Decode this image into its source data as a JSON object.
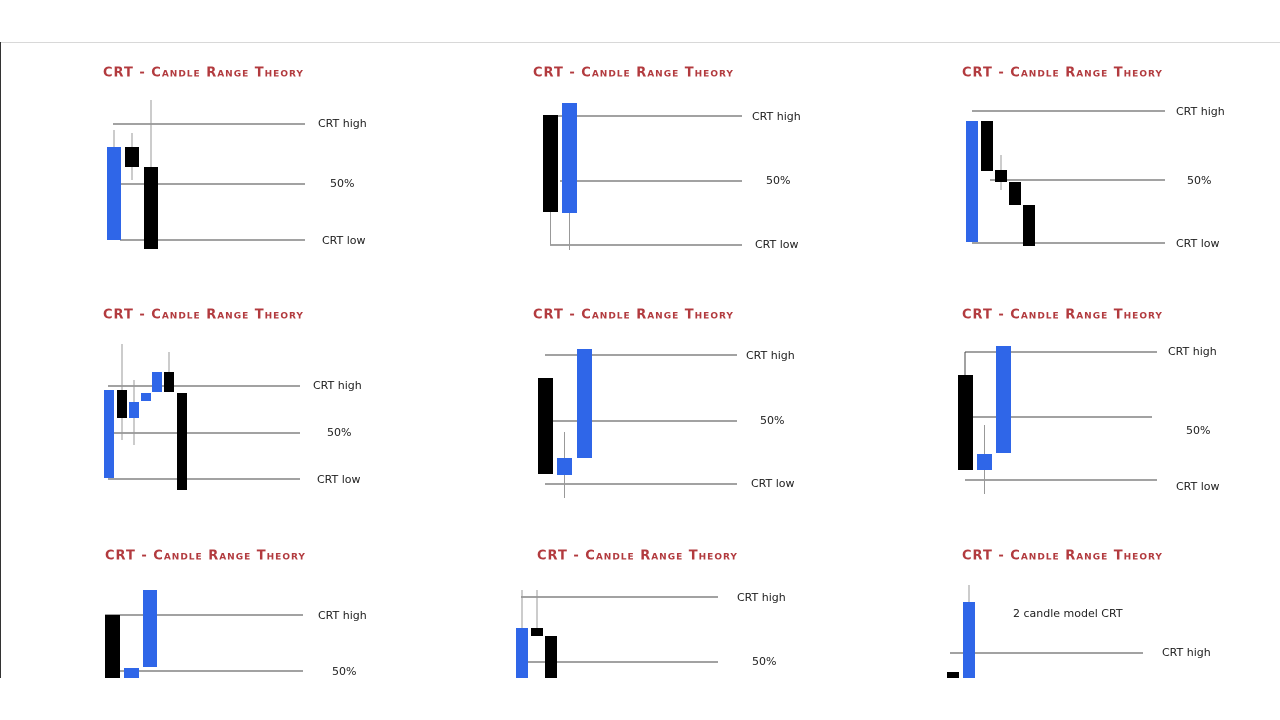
{
  "panels": [
    {
      "title": "CRT - Candle Range Theory",
      "labels": [
        "CRT high",
        "50%",
        "CRT low"
      ]
    },
    {
      "title": "CRT - Candle Range Theory",
      "labels": [
        "CRT high",
        "50%",
        "CRT low"
      ]
    },
    {
      "title": "CRT - Candle Range Theory",
      "labels": [
        "CRT high",
        "50%",
        "CRT low"
      ]
    },
    {
      "title": "CRT - Candle Range Theory",
      "labels": [
        "CRT high",
        "50%",
        "CRT low"
      ]
    },
    {
      "title": "CRT - Candle Range Theory",
      "labels": [
        "CRT high",
        "50%",
        "CRT low"
      ]
    },
    {
      "title": "CRT - Candle Range Theory",
      "labels": [
        "CRT high",
        "50%",
        "CRT low"
      ]
    },
    {
      "title": "CRT - Candle Range Theory",
      "labels": [
        "CRT high",
        "50%"
      ]
    },
    {
      "title": "CRT - Candle Range Theory",
      "labels": [
        "CRT high",
        "50%"
      ]
    },
    {
      "title": "CRT - Candle Range Theory",
      "note": "2 candle model CRT",
      "labels": [
        "CRT high"
      ]
    }
  ]
}
